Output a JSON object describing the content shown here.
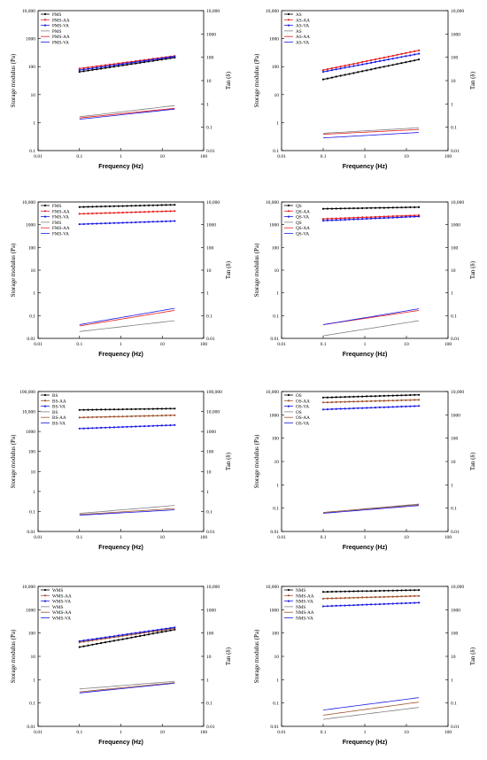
{
  "colors": {
    "black": "#000000",
    "red": "#e8201f",
    "blue": "#1a1ae6",
    "brown": "#a0522d",
    "gray": "#808080"
  },
  "chart_data": [
    {
      "type": "line",
      "scale": "log-log",
      "xlabel": "Frequency (Hz)",
      "ylabel": "Storage modulus (Pa)",
      "y2label": "Tan (δ)",
      "xlim": [
        0.01,
        100
      ],
      "ylim": [
        0.1,
        10000
      ],
      "y2lim": [
        0.01,
        10000
      ],
      "legend": "top-left",
      "xticks": [
        "0.01",
        "0.1",
        "1",
        "10",
        "100"
      ],
      "yticks": [
        "0.1",
        "1",
        "10",
        "100",
        "1000",
        "10,000"
      ],
      "y2ticks": [
        "0.01",
        "0.1",
        "1",
        "10",
        "100",
        "1000",
        "10,000"
      ],
      "series": [
        {
          "name": "PMS",
          "kind": "modulus",
          "color": "#000000",
          "x": [
            0.1,
            20
          ],
          "y": [
            65,
            210
          ]
        },
        {
          "name": "PMS-AA",
          "kind": "modulus",
          "color": "#e8201f",
          "x": [
            0.1,
            20
          ],
          "y": [
            85,
            240
          ]
        },
        {
          "name": "PMS-VA",
          "kind": "modulus",
          "color": "#1a1ae6",
          "x": [
            0.1,
            20
          ],
          "y": [
            75,
            230
          ]
        },
        {
          "name": "PMS",
          "kind": "tan",
          "color": "#808080",
          "x": [
            0.1,
            20
          ],
          "y": [
            0.28,
            0.85
          ]
        },
        {
          "name": "PMS-AA",
          "kind": "tan",
          "color": "#e8201f",
          "x": [
            0.1,
            20
          ],
          "y": [
            0.25,
            0.65
          ]
        },
        {
          "name": "PMS-VA",
          "kind": "tan",
          "color": "#1a1ae6",
          "x": [
            0.1,
            20
          ],
          "y": [
            0.22,
            0.6
          ]
        }
      ]
    },
    {
      "type": "line",
      "scale": "log-log",
      "xlabel": "Frequency (Hz)",
      "ylabel": "Storage modulus (Pa)",
      "y2label": "Tan (δ)",
      "xlim": [
        0.01,
        100
      ],
      "ylim": [
        0.1,
        10000
      ],
      "y2lim": [
        0.01,
        10000
      ],
      "legend": "top-left",
      "xticks": [
        "0.01",
        "0.1",
        "1",
        "10",
        "100"
      ],
      "yticks": [
        "0.1",
        "1",
        "10",
        "100",
        "1000",
        "10,000"
      ],
      "y2ticks": [
        "0.01",
        "0.1",
        "1",
        "10",
        "100",
        "1000",
        "10,000"
      ],
      "series": [
        {
          "name": "AS",
          "kind": "modulus",
          "color": "#000000",
          "x": [
            0.1,
            20
          ],
          "y": [
            35,
            180
          ]
        },
        {
          "name": "AS-AA",
          "kind": "modulus",
          "color": "#e8201f",
          "x": [
            0.1,
            20
          ],
          "y": [
            75,
            380
          ]
        },
        {
          "name": "AS-VA",
          "kind": "modulus",
          "color": "#1a1ae6",
          "x": [
            0.1,
            20
          ],
          "y": [
            65,
            290
          ]
        },
        {
          "name": "AS",
          "kind": "tan",
          "color": "#808080",
          "x": [
            0.1,
            20
          ],
          "y": [
            0.055,
            0.095
          ]
        },
        {
          "name": "AS-AA",
          "kind": "tan",
          "color": "#e8201f",
          "x": [
            0.1,
            20
          ],
          "y": [
            0.05,
            0.08
          ]
        },
        {
          "name": "AS-VA",
          "kind": "tan",
          "color": "#1a1ae6",
          "x": [
            0.1,
            20
          ],
          "y": [
            0.035,
            0.06
          ]
        }
      ]
    },
    {
      "type": "line",
      "scale": "log-log",
      "xlabel": "Frequency (Hz)",
      "ylabel": "Storage modulus (Pa)",
      "y2label": "Tan (δ)",
      "xlim": [
        0.01,
        100
      ],
      "ylim": [
        0.01,
        10000
      ],
      "y2lim": [
        0.01,
        10000
      ],
      "legend": "top-left",
      "xticks": [
        "0.01",
        "0.1",
        "1",
        "10",
        "100"
      ],
      "yticks": [
        "0.01",
        "0.1",
        "1",
        "10",
        "100",
        "1000",
        "10,000"
      ],
      "y2ticks": [
        "0.01",
        "0.1",
        "1",
        "10",
        "100",
        "1000",
        "10,000"
      ],
      "series": [
        {
          "name": "FMS",
          "kind": "modulus",
          "color": "#000000",
          "x": [
            0.1,
            20
          ],
          "y": [
            6000,
            7500
          ]
        },
        {
          "name": "FMS-AA",
          "kind": "modulus",
          "color": "#e8201f",
          "x": [
            0.1,
            20
          ],
          "y": [
            3000,
            4000
          ]
        },
        {
          "name": "FMS-VA",
          "kind": "modulus",
          "color": "#1a1ae6",
          "x": [
            0.1,
            20
          ],
          "y": [
            1050,
            1450
          ]
        },
        {
          "name": "FMS",
          "kind": "tan",
          "color": "#808080",
          "x": [
            0.1,
            20
          ],
          "y": [
            0.02,
            0.06
          ]
        },
        {
          "name": "FMS-AA",
          "kind": "tan",
          "color": "#e8201f",
          "x": [
            0.1,
            20
          ],
          "y": [
            0.035,
            0.17
          ]
        },
        {
          "name": "FMS-VA",
          "kind": "tan",
          "color": "#1a1ae6",
          "x": [
            0.1,
            20
          ],
          "y": [
            0.04,
            0.21
          ]
        }
      ]
    },
    {
      "type": "line",
      "scale": "log-log",
      "xlabel": "Frequency (Hz)",
      "ylabel": "Storage modulus (Pa)",
      "y2label": "Tan (δ)",
      "xlim": [
        0.01,
        100
      ],
      "ylim": [
        0.01,
        10000
      ],
      "y2lim": [
        0.01,
        10000
      ],
      "legend": "top-left",
      "xticks": [
        "0.01",
        "0.1",
        "1",
        "10",
        "100"
      ],
      "yticks": [
        "0.01",
        "0.1",
        "1",
        "10",
        "100",
        "1000",
        "10,000"
      ],
      "y2ticks": [
        "0.01",
        "0.1",
        "1",
        "10",
        "100",
        "1000",
        "10,000"
      ],
      "series": [
        {
          "name": "QS",
          "kind": "modulus",
          "color": "#000000",
          "x": [
            0.1,
            20
          ],
          "y": [
            5000,
            5900
          ]
        },
        {
          "name": "QS-AA",
          "kind": "modulus",
          "color": "#e8201f",
          "x": [
            0.1,
            20
          ],
          "y": [
            1800,
            2600
          ]
        },
        {
          "name": "QS-VA",
          "kind": "modulus",
          "color": "#1a1ae6",
          "x": [
            0.1,
            20
          ],
          "y": [
            1500,
            2300
          ]
        },
        {
          "name": "QS",
          "kind": "tan",
          "color": "#808080",
          "x": [
            0.1,
            20
          ],
          "y": [
            0.013,
            0.06
          ]
        },
        {
          "name": "QS-AA",
          "kind": "tan",
          "color": "#e8201f",
          "x": [
            0.1,
            20
          ],
          "y": [
            0.04,
            0.17
          ]
        },
        {
          "name": "QS-VA",
          "kind": "tan",
          "color": "#1a1ae6",
          "x": [
            0.1,
            20
          ],
          "y": [
            0.04,
            0.2
          ]
        }
      ]
    },
    {
      "type": "line",
      "scale": "log-log",
      "xlabel": "Frequency (Hz)",
      "ylabel": "Storage modulus (Pa)",
      "y2label": "Tan (δ)",
      "xlim": [
        0.01,
        100
      ],
      "ylim": [
        0.01,
        100000
      ],
      "y2lim": [
        0.01,
        100000
      ],
      "legend": "top-left",
      "xticks": [
        "0.01",
        "0.1",
        "1",
        "10",
        "100"
      ],
      "yticks": [
        "0.01",
        "0.1",
        "1",
        "10",
        "100",
        "1000",
        "10,000",
        "100,000"
      ],
      "y2ticks": [
        "0.01",
        "0.1",
        "1",
        "10",
        "100",
        "1000",
        "10,000",
        "100,000"
      ],
      "series": [
        {
          "name": "BS",
          "kind": "modulus",
          "color": "#000000",
          "x": [
            0.1,
            20
          ],
          "y": [
            12000,
            14000
          ]
        },
        {
          "name": "BS-AA",
          "kind": "modulus",
          "color": "#a0522d",
          "x": [
            0.1,
            20
          ],
          "y": [
            5000,
            6500
          ]
        },
        {
          "name": "BS-VA",
          "kind": "modulus",
          "color": "#1a1ae6",
          "x": [
            0.1,
            20
          ],
          "y": [
            1400,
            2100
          ]
        },
        {
          "name": "BS",
          "kind": "tan",
          "color": "#808080",
          "x": [
            0.1,
            20
          ],
          "y": [
            0.08,
            0.2
          ]
        },
        {
          "name": "BS-AA",
          "kind": "tan",
          "color": "#a0522d",
          "x": [
            0.1,
            20
          ],
          "y": [
            0.07,
            0.14
          ]
        },
        {
          "name": "BS-VA",
          "kind": "tan",
          "color": "#1a1ae6",
          "x": [
            0.1,
            20
          ],
          "y": [
            0.065,
            0.12
          ]
        }
      ]
    },
    {
      "type": "line",
      "scale": "log-log",
      "xlabel": "Frequency (Hz)",
      "ylabel": "Storage modulus (Pa)",
      "y2label": "Tan (δ)",
      "xlim": [
        0.01,
        100
      ],
      "ylim": [
        0.01,
        10000
      ],
      "y2lim": [
        0.01,
        10000
      ],
      "legend": "top-left",
      "xticks": [
        "0.01",
        "0.1",
        "1",
        "10",
        "100"
      ],
      "yticks": [
        "0.01",
        "0.1",
        "1",
        "10",
        "100",
        "1000",
        "10,000"
      ],
      "y2ticks": [
        "0.01",
        "0.1",
        "1",
        "10",
        "100",
        "1000",
        "10,000"
      ],
      "series": [
        {
          "name": "OS",
          "kind": "modulus",
          "color": "#000000",
          "x": [
            0.1,
            20
          ],
          "y": [
            5500,
            7200
          ]
        },
        {
          "name": "OS-AA",
          "kind": "modulus",
          "color": "#a0522d",
          "x": [
            0.1,
            20
          ],
          "y": [
            3400,
            4400
          ]
        },
        {
          "name": "OS-VA",
          "kind": "modulus",
          "color": "#1a1ae6",
          "x": [
            0.1,
            20
          ],
          "y": [
            1700,
            2400
          ]
        },
        {
          "name": "OS",
          "kind": "tan",
          "color": "#808080",
          "x": [
            0.1,
            20
          ],
          "y": [
            0.065,
            0.15
          ]
        },
        {
          "name": "OS-AA",
          "kind": "tan",
          "color": "#a0522d",
          "x": [
            0.1,
            20
          ],
          "y": [
            0.065,
            0.14
          ]
        },
        {
          "name": "OS-VA",
          "kind": "tan",
          "color": "#1a1ae6",
          "x": [
            0.1,
            20
          ],
          "y": [
            0.06,
            0.13
          ]
        }
      ]
    },
    {
      "type": "line",
      "scale": "log-log",
      "xlabel": "Frequency (Hz)",
      "ylabel": "Storage modulus (Pa)",
      "y2label": "Tan (δ)",
      "xlim": [
        0.01,
        100
      ],
      "ylim": [
        0.01,
        10000
      ],
      "y2lim": [
        0.01,
        10000
      ],
      "legend": "top-left",
      "xticks": [
        "0.01",
        "0.1",
        "1",
        "10",
        "100"
      ],
      "yticks": [
        "0.01",
        "0.1",
        "1",
        "10",
        "100",
        "1000",
        "10,000"
      ],
      "y2ticks": [
        "0.01",
        "0.1",
        "1",
        "10",
        "100",
        "1000",
        "10,000"
      ],
      "series": [
        {
          "name": "WMS",
          "kind": "modulus",
          "color": "#000000",
          "x": [
            0.1,
            20
          ],
          "y": [
            25,
            140
          ]
        },
        {
          "name": "WMS-AA",
          "kind": "modulus",
          "color": "#a0522d",
          "x": [
            0.1,
            20
          ],
          "y": [
            40,
            160
          ]
        },
        {
          "name": "WMS-VA",
          "kind": "modulus",
          "color": "#1a1ae6",
          "x": [
            0.1,
            20
          ],
          "y": [
            45,
            175
          ]
        },
        {
          "name": "WMS",
          "kind": "tan",
          "color": "#808080",
          "x": [
            0.1,
            20
          ],
          "y": [
            0.4,
            0.85
          ]
        },
        {
          "name": "WMS-AA",
          "kind": "tan",
          "color": "#a0522d",
          "x": [
            0.1,
            20
          ],
          "y": [
            0.3,
            0.75
          ]
        },
        {
          "name": "WMS-VA",
          "kind": "tan",
          "color": "#1a1ae6",
          "x": [
            0.1,
            20
          ],
          "y": [
            0.27,
            0.7
          ]
        }
      ]
    },
    {
      "type": "line",
      "scale": "log-log",
      "xlabel": "Frequency (Hz)",
      "ylabel": "Storage modulus (Pa)",
      "y2label": "Tan (δ)",
      "xlim": [
        0.01,
        100
      ],
      "ylim": [
        0.01,
        10000
      ],
      "y2lim": [
        0.01,
        10000
      ],
      "legend": "top-left",
      "xticks": [
        "0.01",
        "0.1",
        "1",
        "10",
        "100"
      ],
      "yticks": [
        "0.01",
        "0.1",
        "1",
        "10",
        "100",
        "1000",
        "10,000"
      ],
      "y2ticks": [
        "0.01",
        "0.1",
        "1",
        "10",
        "100",
        "1000",
        "10,000"
      ],
      "series": [
        {
          "name": "NMS",
          "kind": "modulus",
          "color": "#000000",
          "x": [
            0.1,
            20
          ],
          "y": [
            5800,
            7000
          ]
        },
        {
          "name": "NMS-AA",
          "kind": "modulus",
          "color": "#a0522d",
          "x": [
            0.1,
            20
          ],
          "y": [
            3000,
            3900
          ]
        },
        {
          "name": "NMS-VA",
          "kind": "modulus",
          "color": "#1a1ae6",
          "x": [
            0.1,
            20
          ],
          "y": [
            1400,
            2000
          ]
        },
        {
          "name": "NMS",
          "kind": "tan",
          "color": "#808080",
          "x": [
            0.1,
            20
          ],
          "y": [
            0.02,
            0.065
          ]
        },
        {
          "name": "NMS-AA",
          "kind": "tan",
          "color": "#a0522d",
          "x": [
            0.1,
            20
          ],
          "y": [
            0.03,
            0.11
          ]
        },
        {
          "name": "NMS-VA",
          "kind": "tan",
          "color": "#1a1ae6",
          "x": [
            0.1,
            20
          ],
          "y": [
            0.05,
            0.17
          ]
        }
      ]
    }
  ]
}
